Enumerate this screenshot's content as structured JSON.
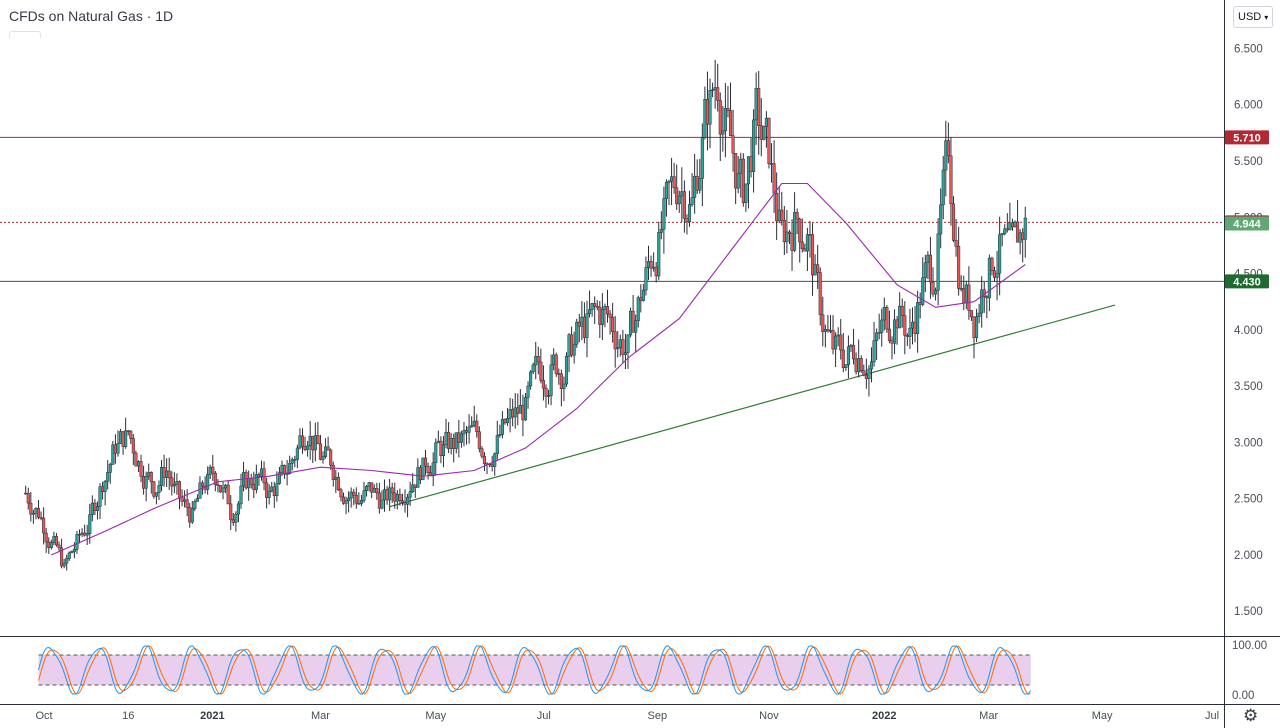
{
  "header": {
    "title": "CFDs on Natural Gas · 1D",
    "currency": "USD",
    "currency_chevron": "chevron-down-icon"
  },
  "footer": {
    "settings_icon": "gear-icon"
  },
  "colors": {
    "up": "#26a69a",
    "down": "#ef5350",
    "wick": "#2a2e39",
    "ma": "#9c27b0",
    "resistance": "#b22833",
    "support": "#1e6b2f",
    "trend": "#2e7d32",
    "current": "#5fa876",
    "stoch_k": "#2196f3",
    "stoch_d": "#ff6d00",
    "stoch_band": "#e1bee7"
  },
  "chart_data": [
    {
      "type": "candlestick",
      "title": "CFDs on Natural Gas · 1D",
      "y_axis": {
        "ticks": [
          1.5,
          2.0,
          2.5,
          3.0,
          3.5,
          4.0,
          4.5,
          5.0,
          5.5,
          6.0,
          6.5
        ],
        "tick_labels": [
          "1.500",
          "2.000",
          "2.500",
          "3.000",
          "3.500",
          "4.000",
          "4.500",
          "5.000",
          "5.500",
          "6.000",
          "6.500"
        ],
        "range": [
          1.28,
          6.93
        ]
      },
      "x_axis": {
        "labels": [
          {
            "text": "Oct",
            "bold": false,
            "date": "2020-10-01"
          },
          {
            "text": "16",
            "bold": false,
            "date": "2020-11-16"
          },
          {
            "text": "2021",
            "bold": true,
            "date": "2021-01-01"
          },
          {
            "text": "Mar",
            "bold": false,
            "date": "2021-03-01"
          },
          {
            "text": "May",
            "bold": false,
            "date": "2021-05-03"
          },
          {
            "text": "Jul",
            "bold": false,
            "date": "2021-07-01"
          },
          {
            "text": "Sep",
            "bold": false,
            "date": "2021-09-01"
          },
          {
            "text": "Nov",
            "bold": false,
            "date": "2021-11-01"
          },
          {
            "text": "2022",
            "bold": true,
            "date": "2022-01-03"
          },
          {
            "text": "Mar",
            "bold": false,
            "date": "2022-03-01"
          },
          {
            "text": "May",
            "bold": false,
            "date": "2022-05-02"
          },
          {
            "text": "Jul",
            "bold": false,
            "date": "2022-07-01"
          }
        ]
      },
      "price_path": [
        [
          "2020-09-21",
          2.55
        ],
        [
          "2020-09-28",
          2.4
        ],
        [
          "2020-10-05",
          2.15
        ],
        [
          "2020-10-12",
          1.88
        ],
        [
          "2020-10-19",
          2.1
        ],
        [
          "2020-10-26",
          2.3
        ],
        [
          "2020-11-02",
          2.68
        ],
        [
          "2020-11-09",
          2.95
        ],
        [
          "2020-11-16",
          3.07
        ],
        [
          "2020-11-23",
          2.82
        ],
        [
          "2020-11-30",
          2.63
        ],
        [
          "2020-12-07",
          2.78
        ],
        [
          "2020-12-14",
          2.45
        ],
        [
          "2020-12-21",
          2.35
        ],
        [
          "2020-12-28",
          2.62
        ],
        [
          "2021-01-04",
          2.72
        ],
        [
          "2021-01-11",
          2.4
        ],
        [
          "2021-01-18",
          2.6
        ],
        [
          "2021-01-25",
          2.7
        ],
        [
          "2021-02-01",
          2.55
        ],
        [
          "2021-02-08",
          2.65
        ],
        [
          "2021-02-15",
          2.9
        ],
        [
          "2021-02-22",
          3.2
        ],
        [
          "2021-03-01",
          2.87
        ],
        [
          "2021-03-08",
          2.78
        ],
        [
          "2021-03-15",
          2.6
        ],
        [
          "2021-03-22",
          2.5
        ],
        [
          "2021-03-29",
          2.55
        ],
        [
          "2021-04-05",
          2.48
        ],
        [
          "2021-04-12",
          2.55
        ],
        [
          "2021-04-19",
          2.72
        ],
        [
          "2021-04-26",
          2.8
        ],
        [
          "2021-05-03",
          2.92
        ],
        [
          "2021-05-10",
          2.95
        ],
        [
          "2021-05-17",
          3.0
        ],
        [
          "2021-05-24",
          3.05
        ],
        [
          "2021-05-31",
          2.93
        ],
        [
          "2021-06-07",
          3.05
        ],
        [
          "2021-06-14",
          3.2
        ],
        [
          "2021-06-21",
          3.3
        ],
        [
          "2021-06-28",
          3.6
        ],
        [
          "2021-07-05",
          3.7
        ],
        [
          "2021-07-12",
          3.68
        ],
        [
          "2021-07-19",
          3.92
        ],
        [
          "2021-07-26",
          4.05
        ],
        [
          "2021-08-02",
          4.15
        ],
        [
          "2021-08-09",
          4.0
        ],
        [
          "2021-08-16",
          3.85
        ],
        [
          "2021-08-23",
          4.3
        ],
        [
          "2021-08-30",
          4.7
        ],
        [
          "2021-09-06",
          5.0
        ],
        [
          "2021-09-13",
          5.35
        ],
        [
          "2021-09-20",
          5.15
        ],
        [
          "2021-09-27",
          5.85
        ],
        [
          "2021-10-04",
          6.25
        ],
        [
          "2021-10-11",
          5.6
        ],
        [
          "2021-10-18",
          5.2
        ],
        [
          "2021-10-25",
          5.85
        ],
        [
          "2021-11-01",
          5.5
        ],
        [
          "2021-11-08",
          4.8
        ],
        [
          "2021-11-15",
          5.0
        ],
        [
          "2021-11-22",
          4.88
        ],
        [
          "2021-11-29",
          4.15
        ],
        [
          "2021-12-06",
          3.8
        ],
        [
          "2021-12-13",
          3.75
        ],
        [
          "2021-12-20",
          3.85
        ],
        [
          "2021-12-27",
          3.75
        ],
        [
          "2022-01-03",
          4.05
        ],
        [
          "2022-01-10",
          4.2
        ],
        [
          "2022-01-17",
          3.95
        ],
        [
          "2022-01-24",
          4.4
        ],
        [
          "2022-01-31",
          4.6
        ],
        [
          "2022-02-07",
          5.5
        ],
        [
          "2022-02-14",
          4.4
        ],
        [
          "2022-02-21",
          4.15
        ],
        [
          "2022-02-28",
          4.55
        ],
        [
          "2022-03-07",
          4.75
        ],
        [
          "2022-03-14",
          4.6
        ],
        [
          "2022-03-21",
          4.94
        ]
      ],
      "moving_average": [
        [
          "2020-10-05",
          2.0
        ],
        [
          "2020-11-02",
          2.2
        ],
        [
          "2020-12-01",
          2.42
        ],
        [
          "2021-01-04",
          2.65
        ],
        [
          "2021-02-01",
          2.7
        ],
        [
          "2021-03-01",
          2.78
        ],
        [
          "2021-03-29",
          2.75
        ],
        [
          "2021-04-26",
          2.7
        ],
        [
          "2021-05-24",
          2.75
        ],
        [
          "2021-06-21",
          2.95
        ],
        [
          "2021-07-19",
          3.3
        ],
        [
          "2021-08-16",
          3.75
        ],
        [
          "2021-09-13",
          4.1
        ],
        [
          "2021-10-11",
          4.7
        ],
        [
          "2021-11-08",
          5.3
        ],
        [
          "2021-11-22",
          5.3
        ],
        [
          "2021-12-13",
          4.95
        ],
        [
          "2022-01-10",
          4.4
        ],
        [
          "2022-01-31",
          4.2
        ],
        [
          "2022-02-21",
          4.25
        ],
        [
          "2022-03-21",
          4.58
        ]
      ],
      "horizontal_levels": [
        {
          "value": 5.71,
          "label": "5.710",
          "role": "resistance",
          "style": "solid"
        },
        {
          "value": 4.954,
          "label": "4.954",
          "role": "resistance",
          "style": "dotted"
        },
        {
          "value": 4.944,
          "label": "4.944",
          "role": "current",
          "style": "none"
        },
        {
          "value": 4.43,
          "label": "4.430",
          "role": "support",
          "style": "solid"
        }
      ],
      "trendline": {
        "from": [
          "2021-04-08",
          2.43
        ],
        "to": [
          "2022-05-09",
          4.22
        ]
      },
      "grid": false,
      "legend": "none"
    },
    {
      "type": "line",
      "indicator": "stochastic oscillator",
      "y_ticks": [
        {
          "value": 0,
          "label": "0.00"
        },
        {
          "value": 100,
          "label": "100.00"
        }
      ],
      "ylim": [
        -10,
        110
      ],
      "band": [
        20,
        80
      ],
      "period_days": 26,
      "range_dates": [
        "2020-09-28",
        "2022-03-24"
      ]
    }
  ]
}
